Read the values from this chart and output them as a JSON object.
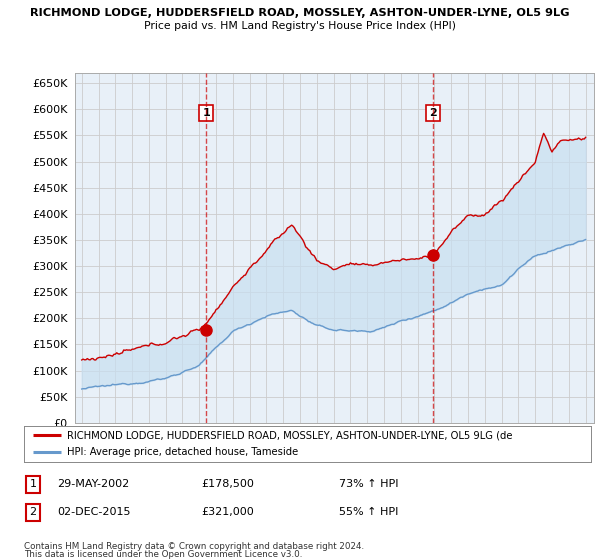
{
  "title1": "RICHMOND LODGE, HUDDERSFIELD ROAD, MOSSLEY, ASHTON-UNDER-LYNE, OL5 9LG",
  "title2": "Price paid vs. HM Land Registry's House Price Index (HPI)",
  "sale1_date": "29-MAY-2002",
  "sale1_price": 178500,
  "sale1_label": "73% ↑ HPI",
  "sale2_date": "02-DEC-2015",
  "sale2_price": 321000,
  "sale2_label": "55% ↑ HPI",
  "legend_red": "RICHMOND LODGE, HUDDERSFIELD ROAD, MOSSLEY, ASHTON-UNDER-LYNE, OL5 9LG (de",
  "legend_blue": "HPI: Average price, detached house, Tameside",
  "footnote1": "Contains HM Land Registry data © Crown copyright and database right 2024.",
  "footnote2": "This data is licensed under the Open Government Licence v3.0.",
  "red_color": "#cc0000",
  "blue_color": "#6699cc",
  "fill_color": "#ddeeff",
  "background_color": "#ffffff",
  "grid_color": "#cccccc",
  "ylim": [
    0,
    670000
  ],
  "yticks": [
    0,
    50000,
    100000,
    150000,
    200000,
    250000,
    300000,
    350000,
    400000,
    450000,
    500000,
    550000,
    600000,
    650000
  ],
  "sale1_year": 2002.42,
  "sale2_year": 2015.92,
  "xstart": 1995,
  "xend": 2025
}
